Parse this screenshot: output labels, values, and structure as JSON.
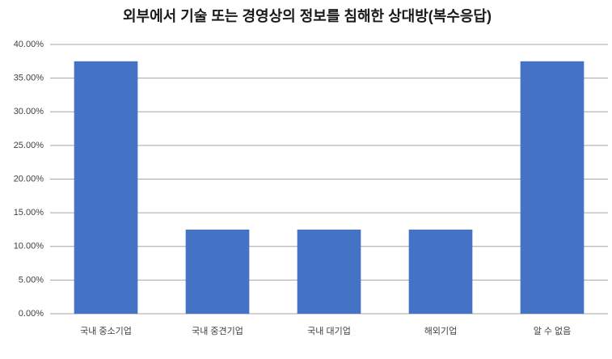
{
  "chart_data": {
    "type": "bar",
    "title": "외부에서 기술 또는 경영상의 정보를 침해한 상대방(복수응답)",
    "categories": [
      "국내 중소기업",
      "국내 중견기업",
      "국내 대기업",
      "해외기업",
      "알 수 없음"
    ],
    "values": [
      37.5,
      12.5,
      12.5,
      12.5,
      37.5
    ],
    "color": "#4472c4",
    "ylim": [
      0,
      40
    ],
    "yticks": [
      {
        "value": 0,
        "label": "0.00%"
      },
      {
        "value": 5,
        "label": "5.00%"
      },
      {
        "value": 10,
        "label": "10.00%"
      },
      {
        "value": 15,
        "label": "15.00%"
      },
      {
        "value": 20,
        "label": "20.00%"
      },
      {
        "value": 25,
        "label": "25.00%"
      },
      {
        "value": 30,
        "label": "30.00%"
      },
      {
        "value": 35,
        "label": "35.00%"
      },
      {
        "value": 40,
        "label": "40.00%"
      }
    ],
    "grid": true
  }
}
